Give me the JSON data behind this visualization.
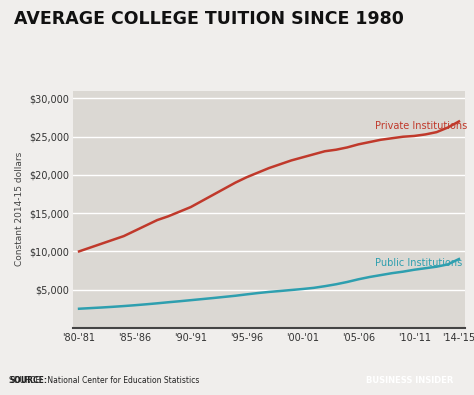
{
  "title": "AVERAGE COLLEGE TUITION SINCE 1980",
  "ylabel": "Constant 2014-15 dollars",
  "source_text": "SOURCE:  National Center for Education Statistics",
  "watermark": "BUSINESS INSIDER",
  "background_color": "#f0eeec",
  "plot_bg_color": "#dbd8d3",
  "grid_color": "#ffffff",
  "x_labels": [
    "'80-'81",
    "'85-'86",
    "'90-'91",
    "'95-'96",
    "'00-'01",
    "'05-'06",
    "'10-'11",
    "'14-'15"
  ],
  "x_positions": [
    0,
    5,
    10,
    15,
    20,
    25,
    30,
    34
  ],
  "private_color": "#c0392b",
  "public_color": "#2e9faf",
  "private_label": "Private Institutions",
  "public_label": "Public Institutions",
  "ylim": [
    0,
    31000
  ],
  "yticks": [
    0,
    5000,
    10000,
    15000,
    20000,
    25000,
    30000
  ]
}
